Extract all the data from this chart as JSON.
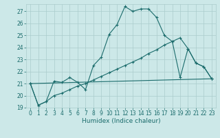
{
  "title": "",
  "xlabel": "Humidex (Indice chaleur)",
  "bg_color": "#cce8e8",
  "grid_color": "#aacccc",
  "line_color": "#1a6b6b",
  "xlim": [
    -0.5,
    23.5
  ],
  "ylim": [
    19,
    27.6
  ],
  "yticks": [
    19,
    20,
    21,
    22,
    23,
    24,
    25,
    26,
    27
  ],
  "xticks": [
    0,
    1,
    2,
    3,
    4,
    5,
    6,
    7,
    8,
    9,
    10,
    11,
    12,
    13,
    14,
    15,
    16,
    17,
    18,
    19,
    20,
    21,
    22,
    23
  ],
  "line1_x": [
    0,
    1,
    2,
    3,
    4,
    5,
    6,
    7,
    8,
    9,
    10,
    11,
    12,
    13,
    14,
    15,
    16,
    17,
    18,
    19,
    20,
    21,
    22,
    23
  ],
  "line1_y": [
    21.0,
    19.2,
    19.5,
    21.2,
    21.1,
    21.5,
    21.1,
    20.5,
    22.5,
    23.2,
    25.1,
    25.9,
    27.4,
    27.0,
    27.2,
    27.2,
    26.5,
    25.0,
    24.5,
    21.5,
    23.9,
    22.7,
    22.4,
    21.4
  ],
  "line2_x": [
    0,
    23
  ],
  "line2_y": [
    21.0,
    21.4
  ],
  "line3_x": [
    0,
    1,
    2,
    3,
    4,
    5,
    6,
    7,
    8,
    9,
    10,
    11,
    12,
    13,
    14,
    15,
    16,
    17,
    18,
    19,
    20,
    21,
    22,
    23
  ],
  "line3_y": [
    21.0,
    19.2,
    19.5,
    20.0,
    20.2,
    20.5,
    20.8,
    21.0,
    21.3,
    21.6,
    21.9,
    22.2,
    22.5,
    22.8,
    23.1,
    23.5,
    23.8,
    24.2,
    24.5,
    24.8,
    23.9,
    22.7,
    22.4,
    21.4
  ],
  "tick_fontsize": 5.5,
  "xlabel_fontsize": 6.5
}
